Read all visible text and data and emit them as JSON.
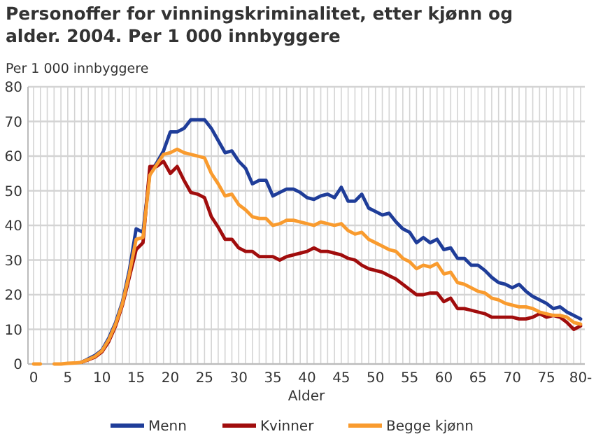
{
  "chart_data": {
    "type": "line",
    "title": "Personoffer for vinningskriminalitet, etter kjønn og alder. 2004. Per 1 000 innbyggere",
    "ylabel": "Per 1 000 innbyggere",
    "xlabel": "Alder",
    "categories": [
      "0",
      null,
      null,
      null,
      null,
      "5",
      null,
      null,
      null,
      null,
      "10",
      null,
      null,
      null,
      null,
      "15",
      null,
      null,
      null,
      null,
      "20",
      null,
      null,
      null,
      null,
      "25",
      null,
      null,
      null,
      null,
      "30",
      null,
      null,
      null,
      null,
      "35",
      null,
      null,
      null,
      null,
      "40",
      null,
      null,
      null,
      null,
      "45",
      null,
      null,
      null,
      null,
      "50",
      null,
      null,
      null,
      null,
      "55",
      null,
      null,
      null,
      null,
      "60",
      null,
      null,
      null,
      null,
      "65",
      null,
      null,
      null,
      null,
      "70",
      null,
      null,
      null,
      null,
      "75",
      null,
      null,
      null,
      null,
      "80-"
    ],
    "series": [
      {
        "name": "Menn",
        "color": "#1f3d99",
        "values": [
          null,
          null,
          null,
          null,
          null,
          null,
          null,
          0.5,
          1.5,
          2.5,
          4,
          7.5,
          12,
          18,
          27,
          39,
          38,
          55,
          58,
          61.5,
          67,
          67,
          68,
          70.5,
          70.5,
          70.5,
          68,
          64.5,
          61,
          61.5,
          58.5,
          56.5,
          52,
          53,
          53,
          48.5,
          49.5,
          50.5,
          50.5,
          49.5,
          48,
          47.5,
          48.5,
          49,
          48,
          51,
          47,
          47,
          49,
          45,
          44,
          43,
          43.5,
          41,
          39,
          38,
          35,
          36.5,
          35,
          36,
          33,
          33.5,
          30.5,
          30.5,
          28.5,
          28.5,
          27,
          25,
          23.5,
          23,
          22,
          23,
          21,
          19.5,
          18.5,
          17.5,
          16,
          16.5,
          15,
          14,
          13
        ]
      },
      {
        "name": "Kvinner",
        "color": "#a10d0d",
        "values": [
          null,
          null,
          null,
          null,
          null,
          null,
          null,
          0.5,
          1.2,
          2,
          3.5,
          6.5,
          11,
          17,
          25,
          33,
          35,
          57,
          57,
          58.5,
          55,
          57,
          53,
          49.5,
          49,
          48,
          42.5,
          39.5,
          36,
          36,
          33.5,
          32.5,
          32.5,
          31,
          31,
          31,
          30,
          31,
          31.5,
          32,
          32.5,
          33.5,
          32.5,
          32.5,
          32,
          31.5,
          30.5,
          30,
          28.5,
          27.5,
          27,
          26.5,
          25.5,
          24.5,
          23,
          21.5,
          20,
          20,
          20.5,
          20.5,
          18,
          19,
          16,
          16,
          15.5,
          15,
          14.5,
          13.5,
          13.5,
          13.5,
          13.5,
          13,
          13,
          13.5,
          14.5,
          13.5,
          14,
          13.5,
          12,
          10,
          11
        ]
      },
      {
        "name": "Begge kjønn",
        "color": "#f99b2e",
        "values": [
          0,
          0,
          null,
          0,
          0,
          0.2,
          0.3,
          0.5,
          1.3,
          2.2,
          3.8,
          7,
          11.5,
          17.5,
          26,
          36,
          36.5,
          54.5,
          57.5,
          60.5,
          61,
          62,
          61,
          60.5,
          60,
          59.5,
          55,
          52,
          48.5,
          49,
          46,
          44.5,
          42.5,
          42,
          42,
          40,
          40.5,
          41.5,
          41.5,
          41,
          40.5,
          40,
          41,
          40.5,
          40,
          40.5,
          38.5,
          37.5,
          38,
          36,
          35,
          34,
          33,
          32.5,
          30.5,
          29.5,
          27.5,
          28.5,
          28,
          29,
          26,
          26.5,
          23.5,
          23,
          22,
          21,
          20.5,
          19,
          18.5,
          17.5,
          17,
          16.5,
          16.5,
          16,
          15,
          14.5,
          14,
          14,
          13.5,
          12,
          11.5
        ]
      }
    ],
    "ylim": [
      0,
      80
    ],
    "yticks": [
      0,
      10,
      20,
      30,
      40,
      50,
      60,
      70,
      80
    ],
    "grid": true,
    "legend": "bottom",
    "marker": "none",
    "line_style": "solid"
  }
}
